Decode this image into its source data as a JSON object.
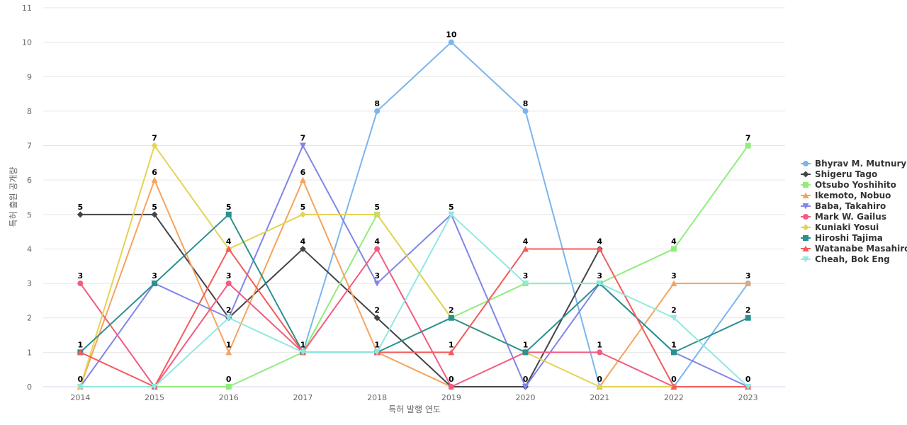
{
  "chart_data": {
    "type": "line",
    "title": "",
    "xlabel": "특허 발행 연도",
    "ylabel": "특허 출원 공개량",
    "x": [
      "2014",
      "2015",
      "2016",
      "2017",
      "2018",
      "2019",
      "2020",
      "2021",
      "2022",
      "2023"
    ],
    "ylim": [
      0,
      11
    ],
    "yticks": [
      "0",
      "1",
      "2",
      "3",
      "4",
      "5",
      "6",
      "7",
      "8",
      "9",
      "10",
      "11"
    ],
    "grid": true,
    "legend_position": "right",
    "series": [
      {
        "name": "Bhyrav M. Mutnury",
        "color": "#7cb5ec",
        "marker": "circle",
        "values": [
          null,
          null,
          null,
          1,
          8,
          10,
          8,
          0,
          0,
          3
        ],
        "labels": [
          "",
          "",
          "",
          "",
          "8",
          "10",
          "8",
          "",
          "",
          ""
        ]
      },
      {
        "name": "Shigeru Tago",
        "color": "#434348",
        "marker": "diamond",
        "values": [
          5,
          5,
          2,
          4,
          2,
          0,
          0,
          4,
          null,
          null
        ],
        "labels": [
          "5",
          "5",
          "2",
          "4",
          "2",
          "",
          "",
          "",
          "",
          ""
        ]
      },
      {
        "name": "Otsubo Yoshihito",
        "color": "#90ed7d",
        "marker": "square",
        "values": [
          null,
          0,
          0,
          1,
          5,
          2,
          3,
          3,
          4,
          7
        ],
        "labels": [
          "",
          "",
          "0",
          "",
          "",
          "",
          "",
          "",
          "4",
          "7"
        ]
      },
      {
        "name": "Ikemoto, Nobuo",
        "color": "#f7a35c",
        "marker": "triangle",
        "values": [
          0,
          6,
          1,
          6,
          1,
          0,
          null,
          0,
          3,
          3
        ],
        "labels": [
          "",
          "6",
          "1",
          "6",
          "",
          "",
          "",
          "",
          "3",
          "3"
        ]
      },
      {
        "name": "Baba, Takahiro",
        "color": "#8085e9",
        "marker": "triangle-down",
        "values": [
          0,
          3,
          2,
          7,
          3,
          5,
          0,
          3,
          1,
          0
        ],
        "labels": [
          "",
          "",
          "",
          "7",
          "3",
          "",
          "0",
          "",
          "",
          ""
        ]
      },
      {
        "name": "Mark W. Gailus",
        "color": "#f15c80",
        "marker": "circle",
        "values": [
          3,
          0,
          3,
          1,
          4,
          0,
          1,
          1,
          0,
          0
        ],
        "labels": [
          "3",
          "",
          "3",
          "",
          "4",
          "0",
          "",
          "1",
          "0",
          ""
        ]
      },
      {
        "name": "Kuniaki Yosui",
        "color": "#e4d354",
        "marker": "diamond",
        "values": [
          0,
          7,
          4,
          5,
          5,
          2,
          1,
          0,
          0,
          null
        ],
        "labels": [
          "",
          "7",
          "",
          "5",
          "5",
          "2",
          "",
          "0",
          "",
          ""
        ]
      },
      {
        "name": "Hiroshi Tajima",
        "color": "#2b908f",
        "marker": "square",
        "values": [
          1,
          3,
          5,
          1,
          1,
          2,
          1,
          3,
          1,
          2
        ],
        "labels": [
          "1",
          "3",
          "5",
          "1",
          "1",
          "",
          "1",
          "3",
          "1",
          "2"
        ]
      },
      {
        "name": "Watanabe Masahiro",
        "color": "#f45b5b",
        "marker": "triangle",
        "values": [
          1,
          0,
          4,
          1,
          1,
          1,
          4,
          4,
          0,
          0
        ],
        "labels": [
          "",
          "",
          "4",
          "",
          "",
          "1",
          "4",
          "4",
          "",
          ""
        ]
      },
      {
        "name": "Cheah, Bok Eng",
        "color": "#91e8e1",
        "marker": "triangle-down",
        "values": [
          0,
          0,
          2,
          1,
          1,
          5,
          3,
          3,
          2,
          0
        ],
        "labels": [
          "0",
          "",
          "",
          "",
          "",
          "5",
          "3",
          "",
          "2",
          "0"
        ]
      }
    ]
  }
}
